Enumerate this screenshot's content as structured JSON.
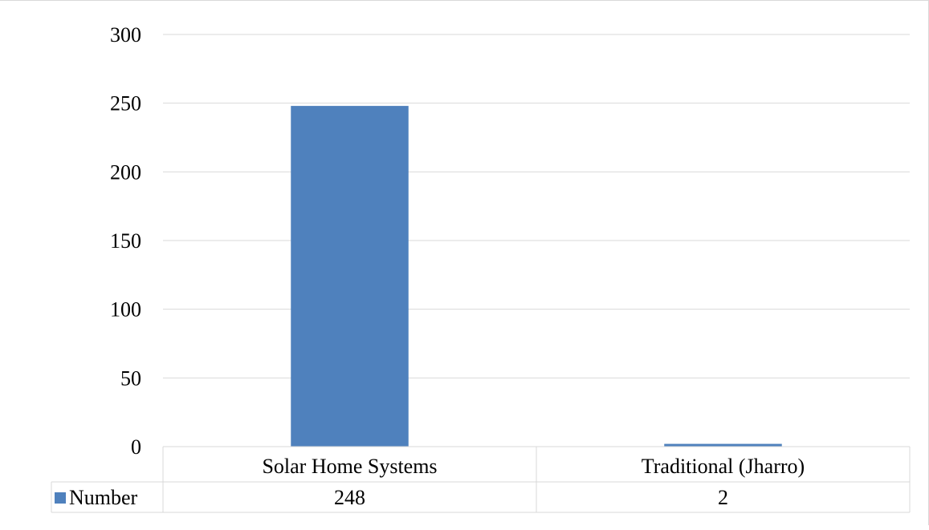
{
  "chart_data": {
    "type": "bar",
    "categories": [
      "Solar Home Systems",
      "Traditional (Jharro)"
    ],
    "series": [
      {
        "name": "Number",
        "values": [
          248,
          2
        ],
        "color": "#4f81bd"
      }
    ],
    "ylim": [
      0,
      300
    ],
    "yticks": [
      0,
      50,
      100,
      150,
      200,
      250,
      300
    ],
    "grid": true,
    "legend": "data-table-left",
    "data_table": true
  }
}
